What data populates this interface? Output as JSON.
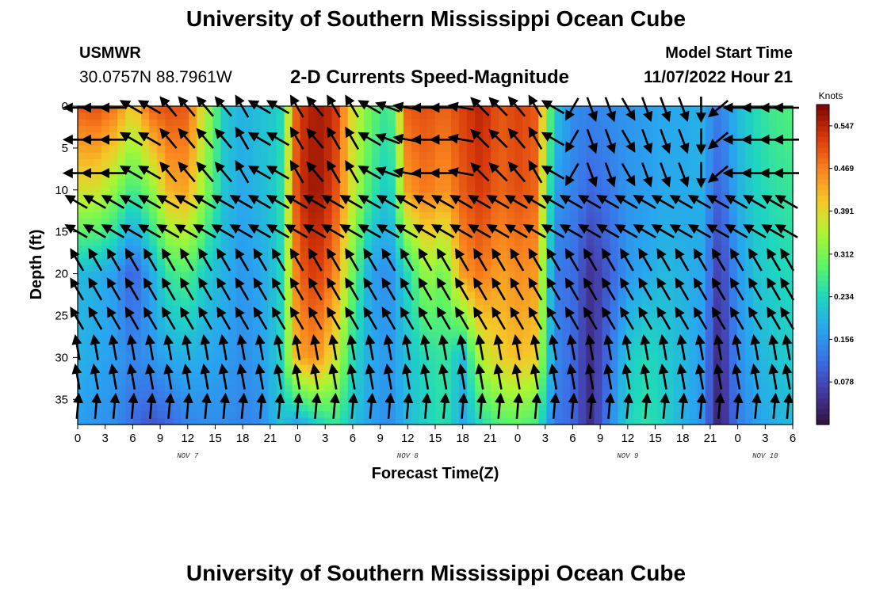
{
  "header": {
    "title": "University of Southern Mississippi Ocean Cube",
    "station_name": "USMWR",
    "station_coords": "30.0757N  88.7961W",
    "subtitle": "2-D Currents Speed-Magnitude",
    "model_start_label": "Model Start Time",
    "model_start_value": "11/07/2022 Hour 21"
  },
  "footer": {
    "title": "University of Southern Mississippi Ocean Cube"
  },
  "chart_data": {
    "type": "heatmap",
    "title": "2-D Currents Speed-Magnitude",
    "xlabel": "Forecast Time(Z)",
    "ylabel": "Depth (ft)",
    "x_tick_labels": [
      "0",
      "3",
      "6",
      "9",
      "12",
      "15",
      "18",
      "21",
      "0",
      "3",
      "6",
      "9",
      "12",
      "15",
      "18",
      "21",
      "0",
      "3",
      "6",
      "9",
      "12",
      "15",
      "18",
      "21",
      "0",
      "3",
      "6"
    ],
    "x_range_hours": [
      0,
      78
    ],
    "day_labels": [
      {
        "hour": 12,
        "label": "NOV 7"
      },
      {
        "hour": 36,
        "label": "NOV 8"
      },
      {
        "hour": 60,
        "label": "NOV 9"
      },
      {
        "hour": 75,
        "label": "NOV 10"
      }
    ],
    "y_ticks": [
      0,
      5,
      10,
      15,
      20,
      25,
      30,
      35
    ],
    "ylim": [
      0,
      38
    ],
    "y_inverted": true,
    "colorbar": {
      "unit": "Knots",
      "range": [
        0,
        0.586
      ],
      "tick_values": [
        0.078,
        0.156,
        0.234,
        0.312,
        0.391,
        0.469,
        0.547
      ],
      "tick_labels": [
        "0.078",
        "0.156",
        "0.234",
        "0.312",
        "0.391",
        "0.469",
        "0.547"
      ],
      "colormap": "turbo"
    },
    "speed_profile": {
      "depths_ft": [
        0,
        10,
        20,
        30,
        38
      ],
      "hours": [
        0,
        2,
        4,
        6,
        8,
        10,
        12,
        14,
        16,
        18,
        20,
        22,
        24,
        26,
        28,
        30,
        32,
        34,
        36,
        38,
        40,
        42,
        44,
        46,
        48,
        50,
        52,
        54,
        56,
        58,
        60,
        62,
        64,
        66,
        68,
        70,
        72,
        74,
        76,
        78
      ],
      "values_knots": [
        [
          0.5,
          0.51,
          0.48,
          0.4,
          0.5,
          0.51,
          0.5,
          0.35,
          0.22,
          0.19,
          0.21,
          0.22,
          0.52,
          0.56,
          0.54,
          0.38,
          0.3,
          0.25,
          0.5,
          0.51,
          0.49,
          0.52,
          0.55,
          0.5,
          0.52,
          0.5,
          0.22,
          0.15,
          0.14,
          0.15,
          0.16,
          0.17,
          0.18,
          0.18,
          0.19,
          0.13,
          0.2,
          0.24,
          0.27,
          0.28
        ],
        [
          0.38,
          0.38,
          0.33,
          0.26,
          0.32,
          0.43,
          0.44,
          0.32,
          0.21,
          0.18,
          0.2,
          0.23,
          0.53,
          0.57,
          0.52,
          0.37,
          0.26,
          0.21,
          0.45,
          0.48,
          0.45,
          0.5,
          0.53,
          0.49,
          0.51,
          0.49,
          0.17,
          0.14,
          0.11,
          0.13,
          0.16,
          0.17,
          0.18,
          0.18,
          0.19,
          0.1,
          0.19,
          0.23,
          0.25,
          0.26
        ],
        [
          0.2,
          0.19,
          0.17,
          0.1,
          0.18,
          0.26,
          0.28,
          0.22,
          0.19,
          0.16,
          0.18,
          0.22,
          0.49,
          0.53,
          0.47,
          0.3,
          0.17,
          0.15,
          0.24,
          0.34,
          0.3,
          0.45,
          0.48,
          0.44,
          0.46,
          0.45,
          0.13,
          0.12,
          0.05,
          0.1,
          0.16,
          0.18,
          0.2,
          0.19,
          0.18,
          0.06,
          0.16,
          0.21,
          0.23,
          0.24
        ],
        [
          0.19,
          0.18,
          0.17,
          0.14,
          0.16,
          0.18,
          0.19,
          0.18,
          0.17,
          0.15,
          0.17,
          0.22,
          0.44,
          0.46,
          0.38,
          0.24,
          0.18,
          0.16,
          0.21,
          0.24,
          0.26,
          0.2,
          0.36,
          0.4,
          0.42,
          0.4,
          0.15,
          0.11,
          0.04,
          0.12,
          0.22,
          0.24,
          0.22,
          0.2,
          0.17,
          0.03,
          0.15,
          0.19,
          0.21,
          0.22
        ],
        [
          0.17,
          0.16,
          0.15,
          0.12,
          0.09,
          0.11,
          0.14,
          0.15,
          0.15,
          0.14,
          0.15,
          0.21,
          0.17,
          0.22,
          0.26,
          0.21,
          0.17,
          0.15,
          0.2,
          0.23,
          0.25,
          0.18,
          0.24,
          0.28,
          0.29,
          0.27,
          0.13,
          0.11,
          0.04,
          0.14,
          0.23,
          0.25,
          0.23,
          0.19,
          0.16,
          0.02,
          0.13,
          0.17,
          0.19,
          0.2
        ]
      ]
    },
    "vector_hours": [
      0,
      2,
      4,
      6,
      8,
      10,
      12,
      14,
      16,
      18,
      20,
      22,
      24,
      26,
      28,
      30,
      32,
      34,
      36,
      38,
      40,
      42,
      44,
      46,
      48,
      50,
      52,
      54,
      56,
      58,
      60,
      62,
      64,
      66,
      68,
      70,
      72,
      74,
      76,
      78
    ],
    "vector_depths_ft": [
      0,
      4,
      8,
      11.5,
      15,
      18.5,
      22,
      25.5,
      29,
      32.5,
      36
    ],
    "vector_direction_deg": [
      [
        270,
        270,
        270,
        300,
        300,
        320,
        320,
        320,
        320,
        330,
        300,
        300,
        330,
        320,
        330,
        330,
        300,
        290,
        280,
        270,
        270,
        280,
        315,
        315,
        320,
        330,
        300,
        210,
        160,
        160,
        150,
        160,
        160,
        160,
        180,
        230,
        270,
        270,
        270,
        270
      ],
      [
        270,
        270,
        270,
        300,
        300,
        320,
        320,
        320,
        320,
        330,
        300,
        300,
        330,
        320,
        330,
        330,
        300,
        290,
        280,
        270,
        270,
        280,
        315,
        315,
        320,
        330,
        300,
        210,
        160,
        160,
        150,
        160,
        160,
        160,
        180,
        230,
        270,
        270,
        270,
        270
      ],
      [
        270,
        270,
        270,
        300,
        300,
        320,
        320,
        320,
        320,
        330,
        300,
        300,
        330,
        320,
        330,
        330,
        300,
        290,
        280,
        270,
        270,
        280,
        315,
        315,
        320,
        330,
        300,
        210,
        160,
        160,
        150,
        160,
        160,
        160,
        180,
        230,
        270,
        270,
        270,
        270
      ],
      [
        300,
        300,
        300,
        300,
        300,
        300,
        300,
        300,
        300,
        300,
        300,
        300,
        300,
        300,
        300,
        300,
        300,
        300,
        300,
        300,
        300,
        300,
        300,
        300,
        300,
        300,
        300,
        300,
        300,
        300,
        300,
        300,
        300,
        300,
        300,
        300,
        300,
        300,
        300,
        300
      ],
      [
        300,
        300,
        300,
        300,
        300,
        300,
        300,
        300,
        300,
        300,
        300,
        300,
        300,
        300,
        300,
        300,
        300,
        300,
        300,
        300,
        300,
        300,
        300,
        300,
        300,
        300,
        300,
        300,
        300,
        300,
        300,
        300,
        300,
        300,
        300,
        300,
        300,
        300,
        300,
        300
      ],
      [
        330,
        330,
        330,
        330,
        330,
        330,
        330,
        330,
        330,
        330,
        330,
        330,
        330,
        330,
        330,
        330,
        330,
        330,
        330,
        330,
        330,
        330,
        330,
        330,
        330,
        330,
        330,
        330,
        330,
        330,
        330,
        330,
        330,
        330,
        330,
        330,
        330,
        330,
        330,
        330
      ],
      [
        330,
        330,
        330,
        330,
        330,
        330,
        330,
        330,
        330,
        330,
        330,
        330,
        330,
        330,
        330,
        330,
        330,
        330,
        330,
        330,
        330,
        330,
        330,
        330,
        330,
        330,
        330,
        330,
        330,
        330,
        330,
        330,
        330,
        330,
        330,
        330,
        330,
        330,
        330,
        330
      ],
      [
        330,
        330,
        330,
        330,
        330,
        330,
        330,
        330,
        330,
        330,
        330,
        330,
        330,
        330,
        330,
        330,
        330,
        330,
        330,
        330,
        330,
        330,
        330,
        330,
        330,
        330,
        330,
        330,
        330,
        330,
        330,
        330,
        330,
        330,
        330,
        330,
        330,
        330,
        330,
        330
      ],
      [
        350,
        350,
        350,
        350,
        350,
        350,
        350,
        350,
        350,
        350,
        350,
        350,
        350,
        350,
        350,
        350,
        350,
        350,
        350,
        350,
        350,
        350,
        350,
        350,
        350,
        350,
        350,
        350,
        350,
        350,
        350,
        350,
        350,
        350,
        350,
        350,
        350,
        350,
        350,
        350
      ],
      [
        350,
        350,
        350,
        350,
        350,
        350,
        350,
        350,
        350,
        350,
        350,
        350,
        350,
        350,
        350,
        350,
        350,
        350,
        350,
        350,
        350,
        350,
        350,
        350,
        350,
        350,
        350,
        350,
        350,
        350,
        350,
        350,
        350,
        350,
        350,
        350,
        350,
        350,
        350,
        350
      ],
      [
        5,
        5,
        5,
        5,
        5,
        5,
        5,
        5,
        5,
        5,
        5,
        5,
        5,
        5,
        5,
        5,
        5,
        5,
        5,
        5,
        5,
        5,
        5,
        5,
        5,
        5,
        5,
        5,
        5,
        5,
        5,
        5,
        5,
        5,
        5,
        5,
        5,
        5,
        5,
        5
      ]
    ]
  }
}
